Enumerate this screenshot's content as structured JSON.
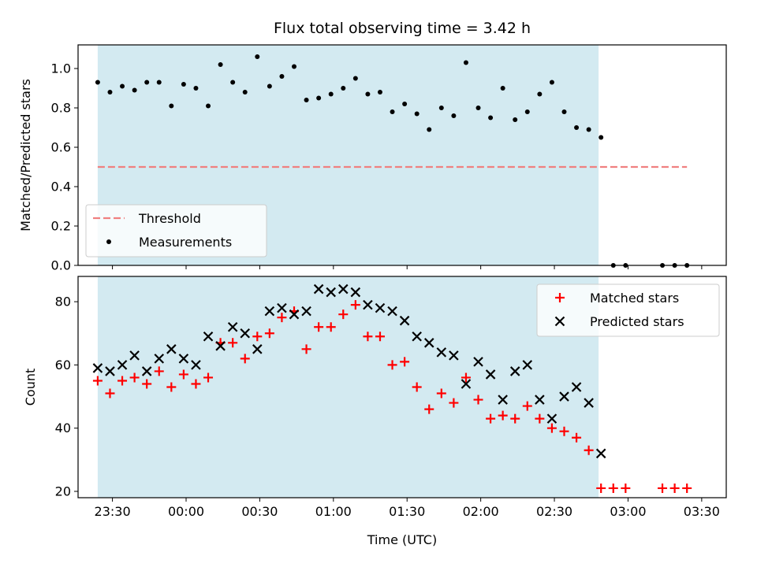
{
  "chart_data": [
    {
      "type": "scatter",
      "title": "Flux total observing time = 3.42 h",
      "xlabel": "",
      "ylabel": "Matched/Predicted stars",
      "ylim": [
        0.0,
        1.12
      ],
      "yticks": [
        "0.0",
        "0.2",
        "0.4",
        "0.6",
        "0.8",
        "1.0"
      ],
      "xlim": [
        "23:16",
        "03:40"
      ],
      "grid": false,
      "legend_position": "lower-left",
      "observing_window": {
        "start": "23:24",
        "end": "02:48",
        "color": "#d3eaf1"
      },
      "threshold": {
        "name": "Threshold",
        "value": 0.5,
        "x_start": "23:24",
        "x_end": "03:24",
        "color": "#f08080"
      },
      "series": [
        {
          "name": "Measurements",
          "color": "#000000",
          "marker": "dot",
          "points": [
            [
              "23:24",
              0.93
            ],
            [
              "23:29",
              0.88
            ],
            [
              "23:34",
              0.91
            ],
            [
              "23:39",
              0.89
            ],
            [
              "23:44",
              0.93
            ],
            [
              "23:49",
              0.93
            ],
            [
              "23:54",
              0.81
            ],
            [
              "23:59",
              0.92
            ],
            [
              "00:04",
              0.9
            ],
            [
              "00:09",
              0.81
            ],
            [
              "00:14",
              1.02
            ],
            [
              "00:19",
              0.93
            ],
            [
              "00:24",
              0.88
            ],
            [
              "00:29",
              1.06
            ],
            [
              "00:34",
              0.91
            ],
            [
              "00:39",
              0.96
            ],
            [
              "00:44",
              1.01
            ],
            [
              "00:49",
              0.84
            ],
            [
              "00:54",
              0.85
            ],
            [
              "00:59",
              0.87
            ],
            [
              "01:04",
              0.9
            ],
            [
              "01:09",
              0.95
            ],
            [
              "01:14",
              0.87
            ],
            [
              "01:19",
              0.88
            ],
            [
              "01:24",
              0.78
            ],
            [
              "01:29",
              0.82
            ],
            [
              "01:34",
              0.77
            ],
            [
              "01:39",
              0.69
            ],
            [
              "01:44",
              0.8
            ],
            [
              "01:49",
              0.76
            ],
            [
              "01:54",
              1.03
            ],
            [
              "01:59",
              0.8
            ],
            [
              "02:04",
              0.75
            ],
            [
              "02:09",
              0.9
            ],
            [
              "02:14",
              0.74
            ],
            [
              "02:19",
              0.78
            ],
            [
              "02:24",
              0.87
            ],
            [
              "02:29",
              0.93
            ],
            [
              "02:34",
              0.78
            ],
            [
              "02:39",
              0.7
            ],
            [
              "02:44",
              0.69
            ],
            [
              "02:49",
              0.65
            ],
            [
              "02:54",
              0.0
            ],
            [
              "02:59",
              0.0
            ],
            [
              "03:14",
              0.0
            ],
            [
              "03:19",
              0.0
            ],
            [
              "03:24",
              0.0
            ]
          ]
        }
      ]
    },
    {
      "type": "scatter",
      "title": "",
      "xlabel": "Time (UTC)",
      "ylabel": "Count",
      "ylim": [
        18,
        88
      ],
      "yticks": [
        "20",
        "40",
        "60",
        "80"
      ],
      "xlim": [
        "23:16",
        "03:40"
      ],
      "xticks": [
        "23:30",
        "00:00",
        "00:30",
        "01:00",
        "01:30",
        "02:00",
        "02:30",
        "03:00",
        "03:30"
      ],
      "grid": false,
      "legend_position": "top-right",
      "observing_window": {
        "start": "23:24",
        "end": "02:48",
        "color": "#d3eaf1"
      },
      "series": [
        {
          "name": "Matched stars",
          "color": "#ff0000",
          "marker": "plus",
          "points": [
            [
              "23:24",
              55
            ],
            [
              "23:29",
              51
            ],
            [
              "23:34",
              55
            ],
            [
              "23:39",
              56
            ],
            [
              "23:44",
              54
            ],
            [
              "23:49",
              58
            ],
            [
              "23:54",
              53
            ],
            [
              "23:59",
              57
            ],
            [
              "00:04",
              54
            ],
            [
              "00:09",
              56
            ],
            [
              "00:14",
              67
            ],
            [
              "00:19",
              67
            ],
            [
              "00:24",
              62
            ],
            [
              "00:29",
              69
            ],
            [
              "00:34",
              70
            ],
            [
              "00:39",
              75
            ],
            [
              "00:44",
              77
            ],
            [
              "00:49",
              65
            ],
            [
              "00:54",
              72
            ],
            [
              "00:59",
              72
            ],
            [
              "01:04",
              76
            ],
            [
              "01:09",
              79
            ],
            [
              "01:14",
              69
            ],
            [
              "01:19",
              69
            ],
            [
              "01:24",
              60
            ],
            [
              "01:29",
              61
            ],
            [
              "01:34",
              53
            ],
            [
              "01:39",
              46
            ],
            [
              "01:44",
              51
            ],
            [
              "01:49",
              48
            ],
            [
              "01:54",
              56
            ],
            [
              "01:59",
              49
            ],
            [
              "02:04",
              43
            ],
            [
              "02:09",
              44
            ],
            [
              "02:14",
              43
            ],
            [
              "02:19",
              47
            ],
            [
              "02:24",
              43
            ],
            [
              "02:29",
              40
            ],
            [
              "02:34",
              39
            ],
            [
              "02:39",
              37
            ],
            [
              "02:44",
              33
            ],
            [
              "02:49",
              21
            ],
            [
              "02:54",
              21
            ],
            [
              "02:59",
              21
            ],
            [
              "03:14",
              21
            ],
            [
              "03:19",
              21
            ],
            [
              "03:24",
              21
            ]
          ]
        },
        {
          "name": "Predicted stars",
          "color": "#000000",
          "marker": "cross",
          "points": [
            [
              "23:24",
              59
            ],
            [
              "23:29",
              58
            ],
            [
              "23:34",
              60
            ],
            [
              "23:39",
              63
            ],
            [
              "23:44",
              58
            ],
            [
              "23:49",
              62
            ],
            [
              "23:54",
              65
            ],
            [
              "23:59",
              62
            ],
            [
              "00:04",
              60
            ],
            [
              "00:09",
              69
            ],
            [
              "00:14",
              66
            ],
            [
              "00:19",
              72
            ],
            [
              "00:24",
              70
            ],
            [
              "00:29",
              65
            ],
            [
              "00:34",
              77
            ],
            [
              "00:39",
              78
            ],
            [
              "00:44",
              76
            ],
            [
              "00:49",
              77
            ],
            [
              "00:54",
              84
            ],
            [
              "00:59",
              83
            ],
            [
              "01:04",
              84
            ],
            [
              "01:09",
              83
            ],
            [
              "01:14",
              79
            ],
            [
              "01:19",
              78
            ],
            [
              "01:24",
              77
            ],
            [
              "01:29",
              74
            ],
            [
              "01:34",
              69
            ],
            [
              "01:39",
              67
            ],
            [
              "01:44",
              64
            ],
            [
              "01:49",
              63
            ],
            [
              "01:54",
              54
            ],
            [
              "01:59",
              61
            ],
            [
              "02:04",
              57
            ],
            [
              "02:09",
              49
            ],
            [
              "02:14",
              58
            ],
            [
              "02:19",
              60
            ],
            [
              "02:24",
              49
            ],
            [
              "02:29",
              43
            ],
            [
              "02:34",
              50
            ],
            [
              "02:39",
              53
            ],
            [
              "02:44",
              48
            ],
            [
              "02:49",
              32
            ]
          ]
        }
      ]
    }
  ]
}
